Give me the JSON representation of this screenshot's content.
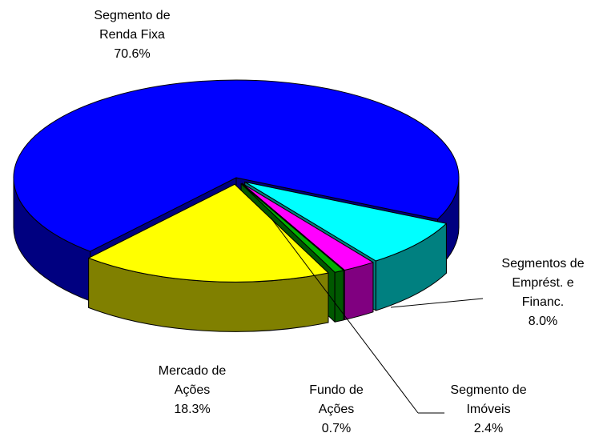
{
  "chart_data": {
    "type": "pie3d",
    "categories": [
      "Segmento de Renda Fixa",
      "Segmentos de Emprést. e Financ.",
      "Segmento de Imóveis",
      "Fundo de Ações",
      "Mercado de Ações"
    ],
    "values": [
      70.6,
      8.0,
      2.4,
      0.7,
      18.3
    ],
    "value_labels": [
      "70.6%",
      "8.0%",
      "2.4%",
      "0.7%",
      "18.3%"
    ],
    "colors": [
      "#0000ff",
      "#00ffff",
      "#ff00ff",
      "#00b000",
      "#ffff00"
    ]
  }
}
